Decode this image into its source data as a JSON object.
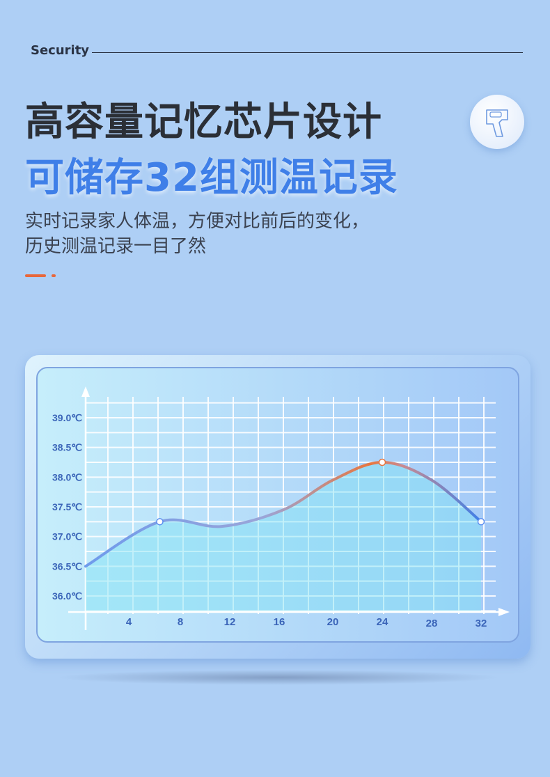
{
  "header": {
    "label": "Security"
  },
  "headline": {
    "line1": "高容量记忆芯片设计",
    "line2": "可储存32组测温记录"
  },
  "description": {
    "line1": "实时记录家人体温，方便对比前后的变化，",
    "line2": "历史测温记录一目了然"
  },
  "badge": {
    "icon": "thermometer-gun-icon"
  },
  "colors": {
    "background": "#aecff5",
    "accent": "#e8673a",
    "headline_blue": "#3f7fe8",
    "curve_blue": "#5a8ef0",
    "curve_peak": "#e8763f",
    "fill": "#7fe2f5"
  },
  "chart_data": {
    "type": "line",
    "title": "",
    "xlabel": "",
    "ylabel": "",
    "x_ticks": [
      "4",
      "8",
      "12",
      "16",
      "20",
      "24",
      "28",
      "32"
    ],
    "y_ticks": [
      "36.0℃",
      "36.5℃",
      "37.0℃",
      "37.5℃",
      "38.0℃",
      "38.5℃",
      "39.0℃"
    ],
    "xlim": [
      0,
      33
    ],
    "ylim": [
      35.8,
      39.3
    ],
    "grid": true,
    "series": [
      {
        "x": [
          0,
          6,
          11,
          16,
          20,
          24,
          28,
          32
        ],
        "values": [
          36.5,
          37.25,
          37.17,
          37.45,
          37.95,
          38.25,
          37.95,
          37.25
        ],
        "markers": [
          6,
          24,
          32
        ]
      }
    ]
  }
}
